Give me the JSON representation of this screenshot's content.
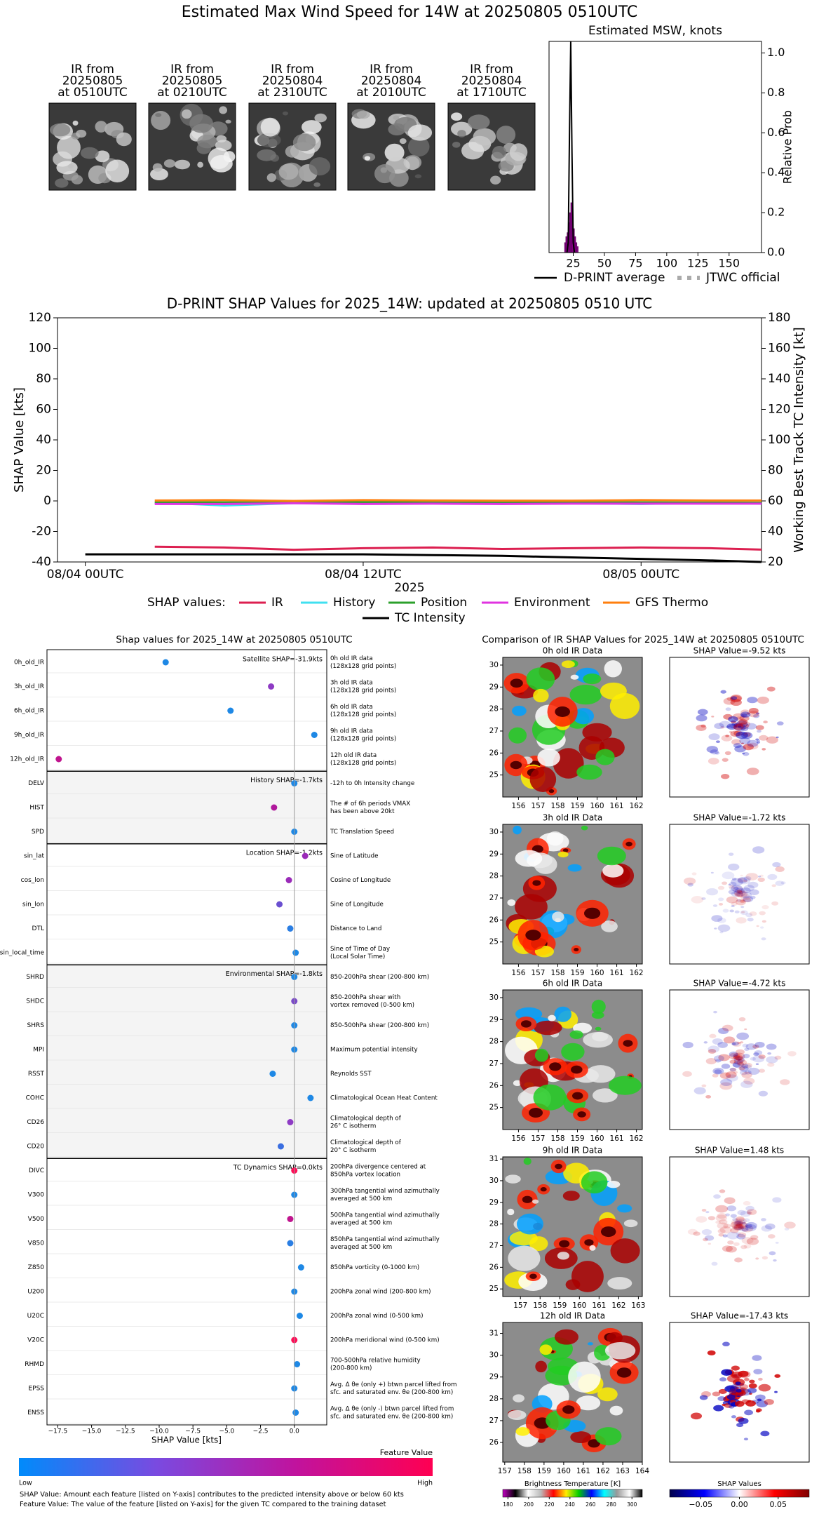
{
  "title": "Estimated Max Wind Speed for 14W at 20250805 0510UTC",
  "thumbnails": [
    {
      "title": [
        "IR from",
        "20250805",
        "at 0510UTC"
      ]
    },
    {
      "title": [
        "IR from",
        "20250805",
        "at 0210UTC"
      ]
    },
    {
      "title": [
        "IR from",
        "20250804",
        "at 2310UTC"
      ]
    },
    {
      "title": [
        "IR from",
        "20250804",
        "at 2010UTC"
      ]
    },
    {
      "title": [
        "IR from",
        "20250804",
        "at 1710UTC"
      ]
    }
  ],
  "chart_data": [
    {
      "type": "histogram",
      "title": "Estimated MSW, knots",
      "ylabel": "Relative Prob",
      "bins": [
        18,
        19,
        20,
        21,
        22,
        23,
        24,
        25,
        26,
        27,
        28,
        29
      ],
      "values": [
        0.05,
        0.08,
        0.1,
        0.15,
        0.2,
        0.25,
        0.17,
        0.12,
        0.08,
        0.05,
        0.03
      ],
      "color": "#800080",
      "xlim": [
        5.6,
        176
      ],
      "ylim": [
        0,
        1.058
      ],
      "xticks": [
        25,
        50,
        75,
        100,
        125,
        150
      ],
      "yticks": [
        {
          "value": 0,
          "label": "0.0"
        },
        {
          "value": 0.2,
          "label": "0.2"
        },
        {
          "value": 0.4,
          "label": "0.4"
        },
        {
          "value": 0.6,
          "label": "0.6"
        },
        {
          "value": 0.8,
          "label": "0.8"
        },
        {
          "value": 1,
          "label": "1.0"
        }
      ],
      "series": [
        {
          "name": "D-PRINT average",
          "color": "#000000",
          "x": [
            20,
            21,
            22,
            23,
            24,
            25,
            26
          ],
          "values": [
            0,
            0.05,
            0.6,
            1.058,
            0.5,
            0.05,
            0
          ]
        },
        {
          "name": "JTWC official",
          "color": "#aaaaaa",
          "x": [],
          "values": []
        }
      ]
    },
    {
      "type": "line",
      "title": "D-PRINT SHAP Values for 2025_14W: updated at 20250805 0510 UTC",
      "xlabel": "2025",
      "ylabel": "SHAP Value [kts]",
      "y2label": "Working Best Track TC Intensity [kt]",
      "legend_title": "SHAP values:",
      "x": [
        0,
        3,
        6,
        9,
        12,
        15,
        18,
        21,
        24,
        27,
        29.2
      ],
      "xlim": [
        -1.2,
        29.2
      ],
      "xticks": [
        {
          "value": 0,
          "label": "08/04 00UTC"
        },
        {
          "value": 12,
          "label": "08/04 12UTC"
        },
        {
          "value": 24,
          "label": "08/05 00UTC"
        }
      ],
      "ylim": [
        -40,
        120
      ],
      "yticks": [
        -40,
        -20,
        0,
        20,
        40,
        60,
        80,
        100,
        120
      ],
      "y2lim": [
        20,
        180
      ],
      "y2ticks": [
        20,
        40,
        60,
        80,
        100,
        120,
        140,
        160,
        180
      ],
      "series": [
        {
          "name": "IR",
          "color": "#dc1f50",
          "values": [
            null,
            -30,
            -30.5,
            -32,
            -31,
            -30.5,
            -31.5,
            -31,
            -30.5,
            -31,
            -31.9
          ]
        },
        {
          "name": "History",
          "color": "#40e0f0",
          "values": [
            null,
            -1,
            -3,
            -1.5,
            -1,
            -1.5,
            -1.2,
            -1.5,
            -2,
            -1.2,
            -1.7
          ]
        },
        {
          "name": "Position",
          "color": "#2ca02c",
          "values": [
            null,
            -1,
            -1,
            -1,
            -0.8,
            -1,
            -1.2,
            -1,
            -1,
            -1.1,
            -1.2
          ]
        },
        {
          "name": "Environment",
          "color": "#e033e0",
          "values": [
            null,
            -2,
            -2,
            -1.5,
            -2,
            -1.8,
            -2,
            -1.8,
            -1.8,
            -1.8,
            -1.8
          ]
        },
        {
          "name": "GFS Thermo",
          "color": "#ff7f0e",
          "values": [
            null,
            0.3,
            0.5,
            0,
            0.5,
            0.3,
            0.2,
            0.2,
            0.5,
            0.3,
            0.3
          ]
        },
        {
          "name": "TC Intensity",
          "color": "#000000",
          "axis": "y2",
          "values": [
            25,
            25,
            25,
            25,
            25,
            24.5,
            24,
            23,
            22,
            21,
            20
          ]
        }
      ]
    },
    {
      "type": "dot",
      "title": "Shap values for 2025_14W at 20250805 0510UTC",
      "xlabel": "SHAP Value [kts]",
      "xlim": [
        -18.3,
        2.4
      ],
      "xticks": [
        {
          "value": -17.5,
          "label": "−17.5"
        },
        {
          "value": -15,
          "label": "−15.0"
        },
        {
          "value": -12.5,
          "label": "−12.5"
        },
        {
          "value": -10,
          "label": "−10.0"
        },
        {
          "value": -7.5,
          "label": "−7.5"
        },
        {
          "value": -5,
          "label": "−5.0"
        },
        {
          "value": -2.5,
          "label": "−2.5"
        },
        {
          "value": 0,
          "label": "0.0"
        }
      ],
      "groups": [
        {
          "label": "Satellite SHAP=-31.9kts",
          "shaded": false,
          "features": [
            {
              "name": "0h_old_IR",
              "value": -9.52,
              "color": "#1e88e5",
              "description": [
                "0h old IR data",
                "(128x128 grid points)"
              ]
            },
            {
              "name": "3h_old_IR",
              "value": -1.72,
              "color": "#8e3bc4",
              "description": [
                "3h old IR data",
                "(128x128 grid points)"
              ]
            },
            {
              "name": "6h_old_IR",
              "value": -4.72,
              "color": "#1e88e5",
              "description": [
                "6h old IR data",
                "(128x128 grid points)"
              ]
            },
            {
              "name": "9h_old_IR",
              "value": 1.48,
              "color": "#1e88e5",
              "description": [
                "9h old IR data",
                "(128x128 grid points)"
              ]
            },
            {
              "name": "12h_old_IR",
              "value": -17.43,
              "color": "#c0158e",
              "description": [
                "12h old IR data",
                "(128x128 grid points)"
              ]
            }
          ]
        },
        {
          "label": "History SHAP=-1.7kts",
          "shaded": true,
          "features": [
            {
              "name": "DELV",
              "value": 0,
              "color": "#1e88e5",
              "description": [
                "-12h to 0h Intensity change"
              ]
            },
            {
              "name": "HIST",
              "value": -1.5,
              "color": "#b0189c",
              "description": [
                "The # of 6h periods VMAX",
                "has been above 20kt"
              ]
            },
            {
              "name": "SPD",
              "value": 0,
              "color": "#1e88e5",
              "description": [
                "TC Translation Speed"
              ]
            }
          ]
        },
        {
          "label": "Location SHAP=-1.2kts",
          "shaded": false,
          "features": [
            {
              "name": "sin_lat",
              "value": 0.8,
              "color": "#9a2bb8",
              "description": [
                "Sine of Latitude"
              ]
            },
            {
              "name": "cos_lon",
              "value": -0.4,
              "color": "#9a2bb8",
              "description": [
                "Cosine of Longitude"
              ]
            },
            {
              "name": "sin_lon",
              "value": -1.1,
              "color": "#6a4fd0",
              "description": [
                "Sine of Longitude"
              ]
            },
            {
              "name": "DTL",
              "value": -0.3,
              "color": "#2a7ee3",
              "description": [
                "Distance to Land"
              ]
            },
            {
              "name": "sin_local_time",
              "value": 0.1,
              "color": "#1e88e5",
              "description": [
                "Sine of Time of Day",
                "(Local Solar Time)"
              ]
            }
          ]
        },
        {
          "label": "Environmental SHAP=-1.8kts",
          "shaded": true,
          "features": [
            {
              "name": "SHRD",
              "value": 0,
              "color": "#1e88e5",
              "description": [
                "850-200hPa shear (200-800 km)"
              ]
            },
            {
              "name": "SHDC",
              "value": 0,
              "color": "#7a4ac8",
              "description": [
                "850-200hPa shear with",
                "vortex removed (0-500 km)"
              ]
            },
            {
              "name": "SHRS",
              "value": 0,
              "color": "#1e88e5",
              "description": [
                "850-500hPa shear (200-800 km)"
              ]
            },
            {
              "name": "MPI",
              "value": 0,
              "color": "#1e88e5",
              "description": [
                "Maximum potential intensity"
              ]
            },
            {
              "name": "RSST",
              "value": -1.6,
              "color": "#1e88e5",
              "description": [
                "Reynolds SST"
              ]
            },
            {
              "name": "COHC",
              "value": 1.2,
              "color": "#1e88e5",
              "description": [
                "Climatological Ocean Heat Content"
              ]
            },
            {
              "name": "CD26",
              "value": -0.3,
              "color": "#8e3bc4",
              "description": [
                "Climatological depth of",
                "26° C isotherm"
              ]
            },
            {
              "name": "CD20",
              "value": -1,
              "color": "#3a6ee0",
              "description": [
                "Climatological depth of",
                "20° C isotherm"
              ]
            }
          ]
        },
        {
          "label": "TC Dynamics SHAP=0.0kts",
          "shaded": false,
          "features": [
            {
              "name": "DIVC",
              "value": 0,
              "color": "#ff0d57",
              "description": [
                "200hPa divergence centered at",
                "850hPa vortex location"
              ]
            },
            {
              "name": "V300",
              "value": 0,
              "color": "#1e88e5",
              "description": [
                "300hPa tangential wind azimuthally",
                "averaged at 500 km"
              ]
            },
            {
              "name": "V500",
              "value": -0.3,
              "color": "#c0158e",
              "description": [
                "500hPa tangential wind azimuthally",
                "averaged at 500 km"
              ]
            },
            {
              "name": "V850",
              "value": -0.3,
              "color": "#2a7ee3",
              "description": [
                "850hPa tangential wind azimuthally",
                "averaged at 500 km"
              ]
            },
            {
              "name": "Z850",
              "value": 0.5,
              "color": "#1e88e5",
              "description": [
                "850hPa vorticity (0-1000 km)"
              ]
            },
            {
              "name": "U200",
              "value": 0,
              "color": "#1e88e5",
              "description": [
                "200hPa zonal wind (200-800 km)"
              ]
            },
            {
              "name": "U20C",
              "value": 0.4,
              "color": "#1e88e5",
              "description": [
                "200hPa zonal wind (0-500 km)"
              ]
            },
            {
              "name": "V20C",
              "value": 0,
              "color": "#ff0d57",
              "description": [
                "200hPa meridional wind (0-500 km)"
              ]
            },
            {
              "name": "RHMD",
              "value": 0.2,
              "color": "#1e88e5",
              "description": [
                "700-500hPa relative humidity",
                "(200-800 km)"
              ]
            },
            {
              "name": "EPSS",
              "value": 0,
              "color": "#1e88e5",
              "description": [
                "Avg. Δ θe (only +) btwn parcel lifted from",
                "sfc. and saturated env. θe (200-800 km)"
              ]
            },
            {
              "name": "ENSS",
              "value": 0.1,
              "color": "#1e88e5",
              "description": [
                "Avg. Δ θe (only -) btwn parcel lifted from",
                "sfc. and saturated env. θe (200-800 km)"
              ]
            }
          ]
        }
      ],
      "colorbar": {
        "label": "Feature Value",
        "low": "Low",
        "high": "High",
        "colors": [
          "#008bfb",
          "#7a4ae0",
          "#c0139e",
          "#ff0052"
        ]
      },
      "notes": [
        "SHAP Value: Amount each feature [listed on Y-axis] contributes to the predicted intensity above or below 60 kts",
        "Feature Value: The value of the feature [listed on Y-axis] for the given TC compared to the training dataset"
      ]
    }
  ],
  "ir_comparison": {
    "title": "Comparison of IR SHAP Values for 2025_14W at 20250805 0510UTC",
    "panels": [
      {
        "ir_title": "0h old IR Data",
        "shap_title": "SHAP Value=-9.52 kts",
        "xlim": [
          155.2,
          162.3
        ],
        "ylim": [
          24.0,
          30.35
        ],
        "xticks": [
          156,
          157,
          158,
          159,
          160,
          161,
          162
        ],
        "yticks": [
          25,
          26,
          27,
          28,
          29,
          30
        ]
      },
      {
        "ir_title": "3h old IR Data",
        "shap_title": "SHAP Value=-1.72 kts",
        "xlim": [
          155.2,
          162.3
        ],
        "ylim": [
          24.0,
          30.35
        ],
        "xticks": [
          156,
          157,
          158,
          159,
          160,
          161,
          162
        ],
        "yticks": [
          25,
          26,
          27,
          28,
          29,
          30
        ]
      },
      {
        "ir_title": "6h old IR Data",
        "shap_title": "SHAP Value=-4.72 kts",
        "xlim": [
          155.2,
          162.3
        ],
        "ylim": [
          24.0,
          30.35
        ],
        "xticks": [
          156,
          157,
          158,
          159,
          160,
          161,
          162
        ],
        "yticks": [
          25,
          26,
          27,
          28,
          29,
          30
        ]
      },
      {
        "ir_title": "9h old IR Data",
        "shap_title": "SHAP Value=1.48 kts",
        "xlim": [
          156.1,
          163.2
        ],
        "ylim": [
          24.65,
          31.1
        ],
        "xticks": [
          157,
          158,
          159,
          160,
          161,
          162,
          163
        ],
        "yticks": [
          25,
          26,
          27,
          28,
          29,
          30,
          31
        ]
      },
      {
        "ir_title": "12h old IR Data",
        "shap_title": "SHAP Value=-17.43 kts",
        "xlim": [
          156.9,
          164.0
        ],
        "ylim": [
          25.1,
          31.5
        ],
        "xticks": [
          157,
          158,
          159,
          160,
          161,
          162,
          163,
          164
        ],
        "yticks": [
          26,
          27,
          28,
          29,
          30,
          31
        ]
      }
    ],
    "bt_colorbar": {
      "label": "Brightness Temperature [K]",
      "clim": [
        175,
        310
      ],
      "ticks": [
        180,
        200,
        220,
        240,
        260,
        280,
        300
      ],
      "colors": [
        "#c000c0",
        "#000000",
        "#ffffff",
        "#bbbbbb",
        "#ff0000",
        "#ffee00",
        "#00cc00",
        "#0000ff",
        "#00ffff",
        "#999999",
        "#ffffff",
        "#000000"
      ]
    },
    "shap_colorbar": {
      "label": "SHAP Values",
      "clim": [
        -0.09,
        0.09
      ],
      "ticks": [
        {
          "value": -0.05,
          "label": "−0.05"
        },
        {
          "value": 0,
          "label": "0.00"
        },
        {
          "value": 0.05,
          "label": "0.05"
        }
      ],
      "colors": [
        "#00004c",
        "#0000ff",
        "#ffffff",
        "#ff0000",
        "#800000"
      ]
    }
  }
}
